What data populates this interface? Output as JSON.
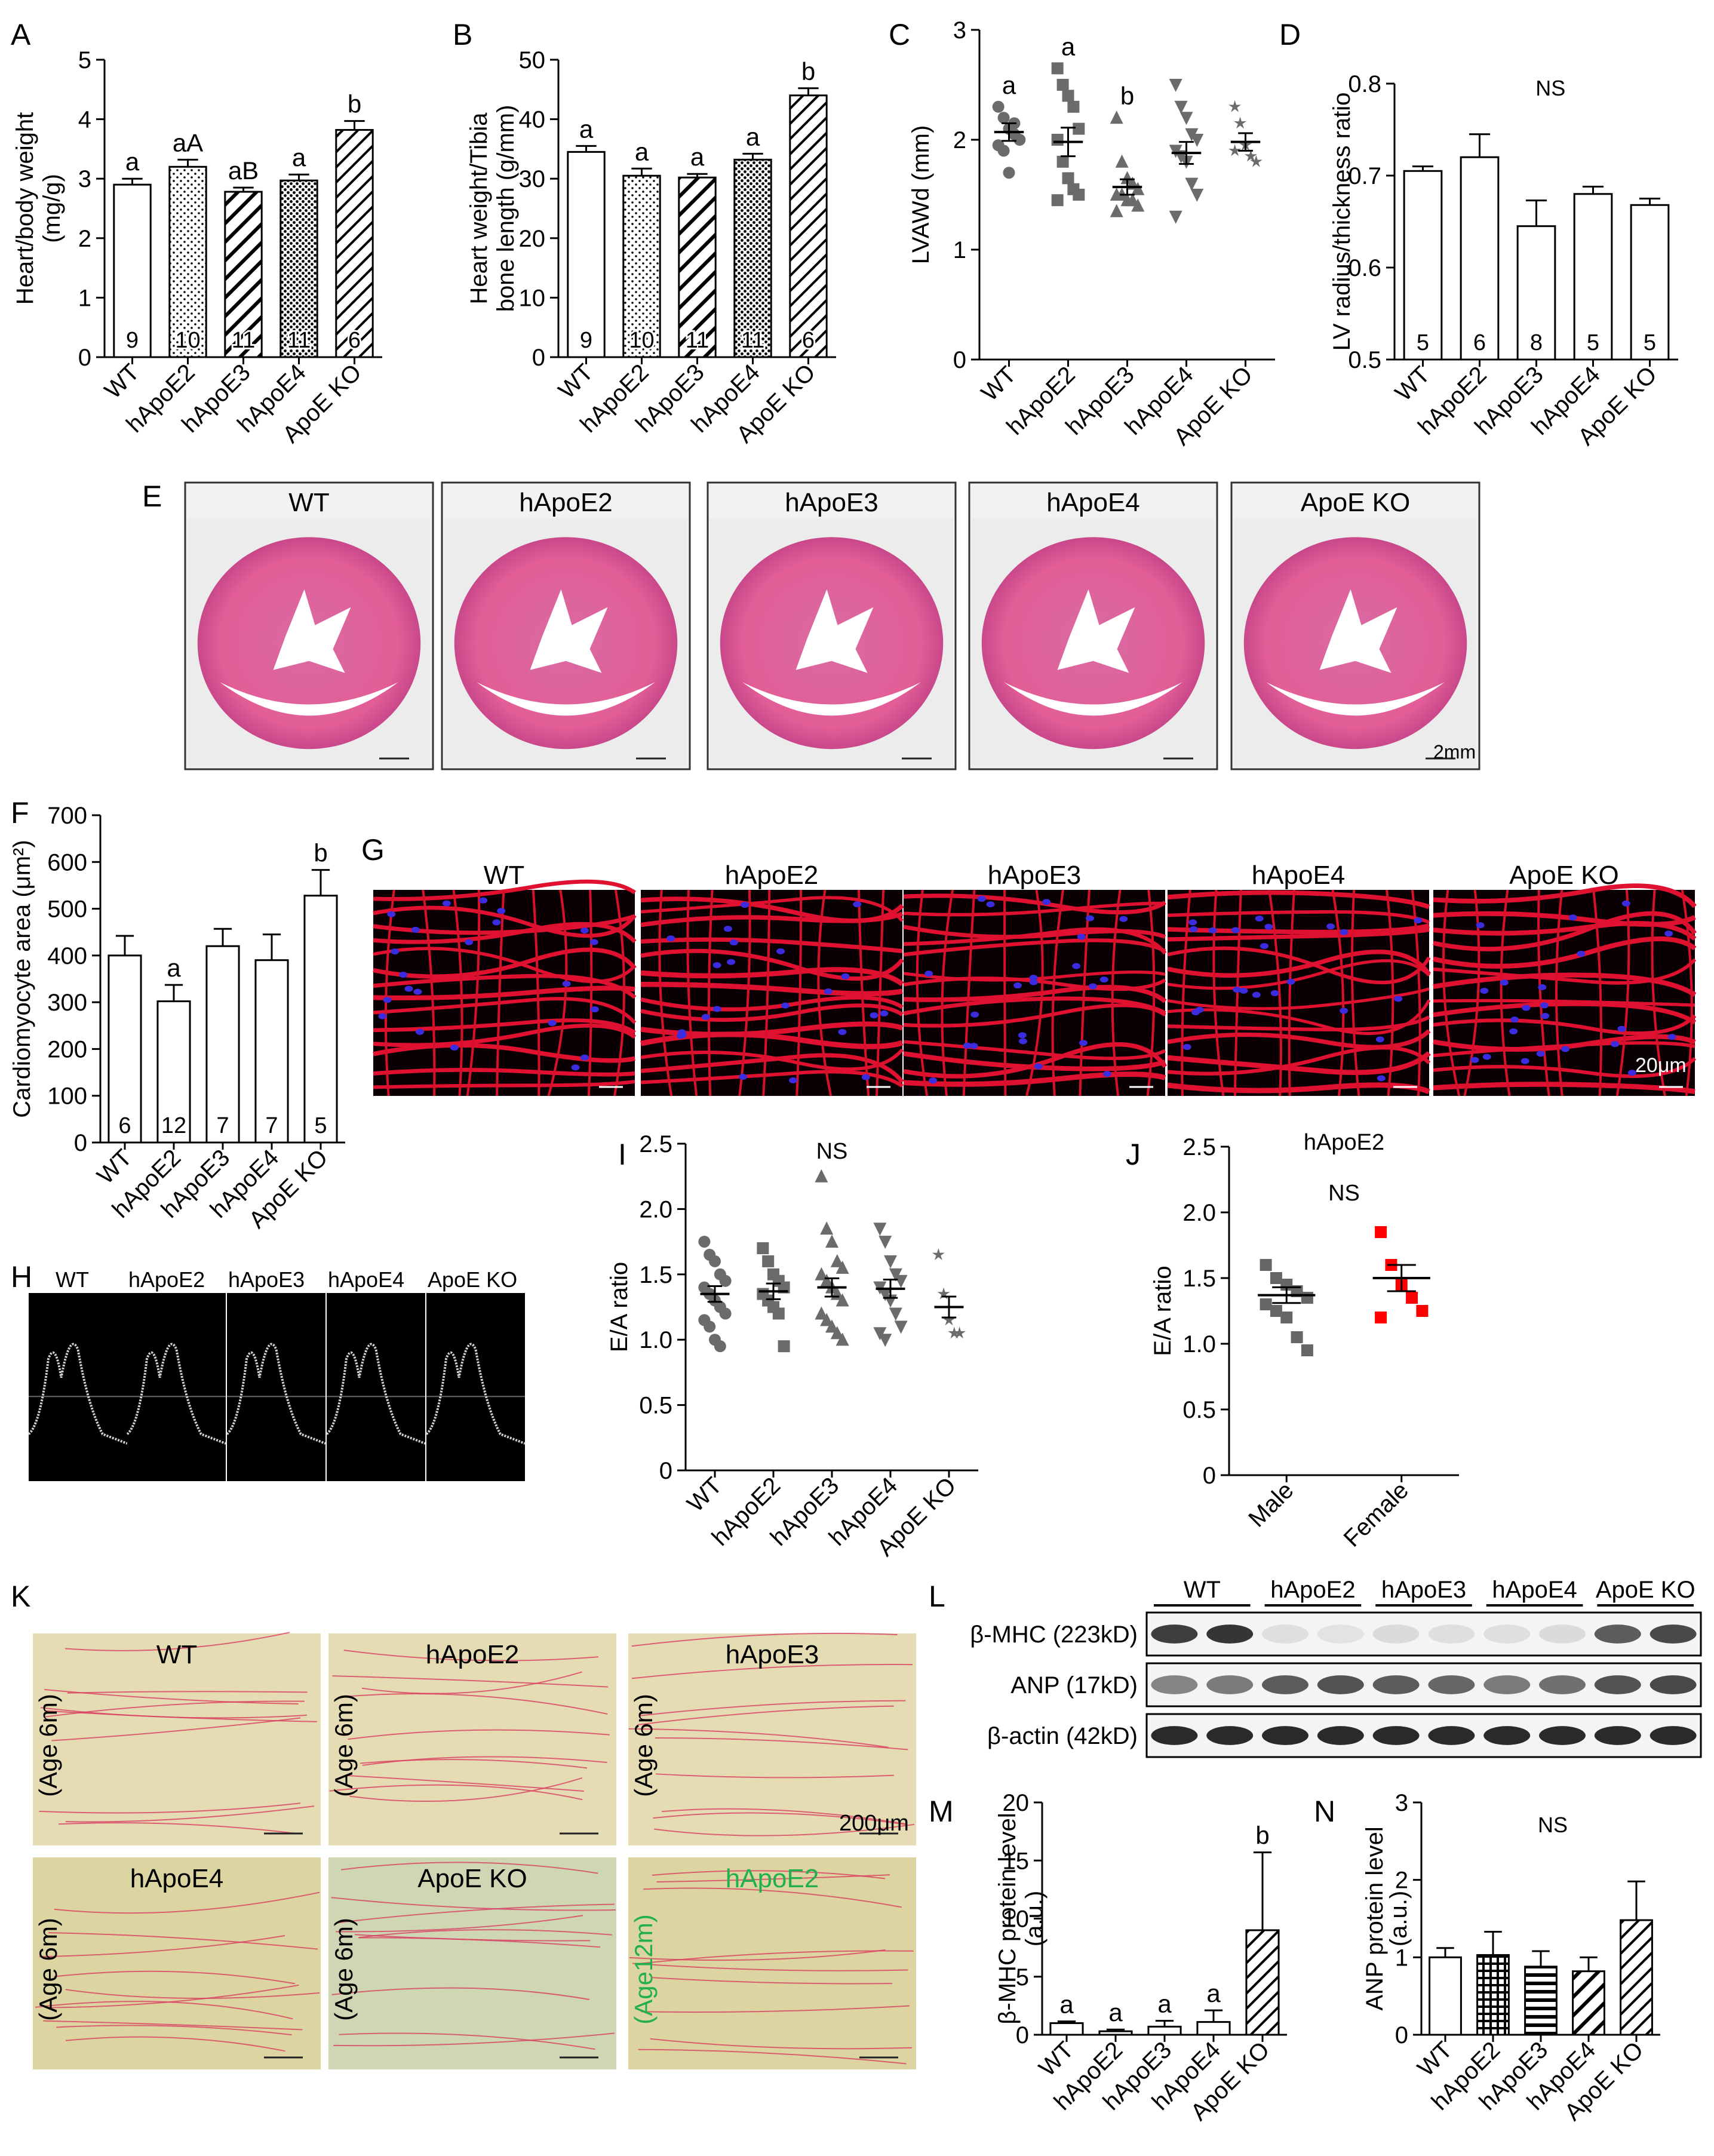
{
  "colors": {
    "red": "#ff0000",
    "green": "#21b04b",
    "he_pink": "#e05d96",
    "sirius": "#d8cfa0",
    "blot": "#2a2a2a"
  },
  "chart_data": [
    {
      "panel": "A",
      "type": "bar",
      "ylabel": [
        "Heart/body weight",
        "(mg/g)"
      ],
      "ylim": [
        0,
        5
      ],
      "ticks": [
        0,
        1,
        2,
        3,
        4,
        5
      ],
      "categories": [
        "WT",
        "hApoE2",
        "hApoE3",
        "hApoE4",
        "ApoE KO"
      ],
      "values": [
        2.9,
        3.2,
        2.78,
        2.97,
        3.82
      ],
      "errors": [
        0.1,
        0.12,
        0.07,
        0.1,
        0.15
      ],
      "letters": [
        "a",
        "aA",
        "aB",
        "a",
        "b"
      ],
      "n": [
        "9",
        "10",
        "11",
        "11",
        "6"
      ],
      "patterns": [
        "white",
        "dots",
        "hatch",
        "dense",
        "hatch2"
      ]
    },
    {
      "panel": "B",
      "type": "bar",
      "ylabel": [
        "Heart weight/Tibia",
        "bone length (g/mm)"
      ],
      "ylim": [
        0,
        50
      ],
      "ticks": [
        0,
        10,
        20,
        30,
        40,
        50
      ],
      "categories": [
        "WT",
        "hApoE2",
        "hApoE3",
        "hApoE4",
        "ApoE KO"
      ],
      "values": [
        34.5,
        30.5,
        30.2,
        33.2,
        44
      ],
      "errors": [
        1,
        1.2,
        0.6,
        1,
        1.2
      ],
      "letters": [
        "a",
        "a",
        "a",
        "a",
        "b"
      ],
      "n": [
        "9",
        "10",
        "11",
        "11",
        "6"
      ],
      "patterns": [
        "white",
        "dots",
        "hatch",
        "dense",
        "hatch2"
      ]
    },
    {
      "panel": "C",
      "type": "scatter",
      "ylabel": [
        "LVAWd (mm)"
      ],
      "ylim": [
        0,
        3
      ],
      "ticks": [
        0,
        1,
        2,
        3
      ],
      "categories": [
        "WT",
        "hApoE2",
        "hApoE3",
        "hApoE4",
        "ApoE KO"
      ],
      "means": [
        2.07,
        1.98,
        1.57,
        1.88,
        1.98
      ],
      "errors": [
        0.08,
        0.13,
        0.07,
        0.1,
        0.08
      ],
      "letters": [
        "a",
        "a",
        "b",
        "",
        ""
      ],
      "markers": [
        "circle",
        "square",
        "triangle",
        "tri-down",
        "star"
      ],
      "points": [
        [
          2.3,
          2.2,
          2.1,
          2.05,
          2.0,
          1.95,
          1.9,
          1.7,
          2.15
        ],
        [
          2.65,
          2.5,
          2.4,
          2.3,
          2.1,
          2.0,
          1.8,
          1.65,
          1.55,
          1.5,
          1.45
        ],
        [
          2.2,
          1.8,
          1.65,
          1.6,
          1.55,
          1.5,
          1.5,
          1.45,
          1.45,
          1.4,
          1.35
        ],
        [
          2.5,
          2.3,
          2.2,
          2.05,
          2.0,
          1.9,
          1.85,
          1.8,
          1.6,
          1.5,
          1.3
        ],
        [
          2.3,
          2.15,
          1.95,
          1.85,
          1.8,
          1.9
        ]
      ]
    },
    {
      "panel": "D",
      "type": "bar",
      "ylabel": [
        "LV radius/thickness ratio"
      ],
      "ylim": [
        0.5,
        0.8
      ],
      "ticks": [
        0.5,
        0.6,
        0.7,
        0.8
      ],
      "categories": [
        "WT",
        "hApoE2",
        "hApoE3",
        "hApoE4",
        "ApoE KO"
      ],
      "values": [
        0.705,
        0.72,
        0.645,
        0.68,
        0.668
      ],
      "errors": [
        0.005,
        0.025,
        0.028,
        0.008,
        0.007
      ],
      "n": [
        "5",
        "6",
        "8",
        "5",
        "5"
      ],
      "annotation": "NS",
      "patterns": [
        "white",
        "white",
        "white",
        "white",
        "white"
      ]
    },
    {
      "panel": "F",
      "type": "bar",
      "ylabel": [
        "Cardiomyocyte area (μm²)"
      ],
      "ylim": [
        0,
        700
      ],
      "ticks": [
        0,
        100,
        200,
        300,
        400,
        500,
        600,
        700
      ],
      "categories": [
        "WT",
        "hApoE2",
        "hApoE3",
        "hApoE4",
        "ApoE KO"
      ],
      "values": [
        400,
        302,
        420,
        390,
        528
      ],
      "errors": [
        42,
        35,
        37,
        55,
        55
      ],
      "letters": [
        "",
        "a",
        "",
        "",
        "b"
      ],
      "n": [
        "6",
        "12",
        "7",
        "7",
        "5"
      ],
      "patterns": [
        "white",
        "white",
        "white",
        "white",
        "white"
      ]
    },
    {
      "panel": "I",
      "type": "scatter",
      "ylabel": [
        "E/A ratio"
      ],
      "ylim": [
        0,
        2.5
      ],
      "ticks": [
        "0",
        "0.5",
        "1.0",
        "1.5",
        "2.0",
        "2.5"
      ],
      "categories": [
        "WT",
        "hApoE2",
        "hApoE3",
        "hApoE4",
        "ApoE KO"
      ],
      "means": [
        1.35,
        1.37,
        1.4,
        1.39,
        1.25
      ],
      "errors": [
        0.06,
        0.06,
        0.07,
        0.07,
        0.08
      ],
      "annotation": "NS",
      "markers": [
        "circle",
        "square",
        "triangle",
        "tri-down",
        "star"
      ],
      "points": [
        [
          1.75,
          1.65,
          1.6,
          1.5,
          1.45,
          1.4,
          1.35,
          1.3,
          1.25,
          1.2,
          1.15,
          1.1,
          1.0,
          0.95
        ],
        [
          1.7,
          1.6,
          1.5,
          1.45,
          1.4,
          1.35,
          1.3,
          1.25,
          1.2,
          0.95
        ],
        [
          2.25,
          1.85,
          1.75,
          1.6,
          1.55,
          1.5,
          1.45,
          1.4,
          1.35,
          1.3,
          1.2,
          1.15,
          1.1,
          1.05,
          1.0
        ],
        [
          1.85,
          1.75,
          1.6,
          1.5,
          1.45,
          1.4,
          1.35,
          1.3,
          1.2,
          1.1,
          1.05,
          1.0
        ],
        [
          1.65,
          1.35,
          1.15,
          1.05,
          1.05
        ]
      ]
    },
    {
      "panel": "J",
      "type": "scatter",
      "title": "hApoE2",
      "ylabel": [
        "E/A ratio"
      ],
      "ylim": [
        0,
        2.5
      ],
      "ticks": [
        "0",
        "0.5",
        "1.0",
        "1.5",
        "2.0",
        "2.5"
      ],
      "categories": [
        "Male",
        "Female"
      ],
      "means": [
        1.37,
        1.5
      ],
      "errors": [
        0.06,
        0.1
      ],
      "annotation": "NS",
      "markers": [
        "square",
        "square"
      ],
      "marker_colors": [
        "#666666",
        "#ff0000"
      ],
      "points": [
        [
          1.6,
          1.5,
          1.45,
          1.4,
          1.35,
          1.3,
          1.25,
          1.2,
          1.05,
          0.95
        ],
        [
          1.85,
          1.6,
          1.45,
          1.35,
          1.25,
          1.2
        ]
      ]
    },
    {
      "panel": "M",
      "type": "bar",
      "ylabel": [
        "β-MHC protein level",
        "(a.u.)"
      ],
      "ylim": [
        0,
        20
      ],
      "ticks": [
        0,
        5,
        10,
        15,
        20
      ],
      "categories": [
        "WT",
        "hApoE2",
        "hApoE3",
        "hApoE4",
        "ApoE KO"
      ],
      "values": [
        1,
        0.3,
        0.7,
        1.1,
        9
      ],
      "errors": [
        0.15,
        0.15,
        0.5,
        1,
        6.7
      ],
      "letters": [
        "a",
        "a",
        "a",
        "a",
        "b"
      ],
      "patterns": [
        "white",
        "white",
        "white",
        "white",
        "hatch2"
      ]
    },
    {
      "panel": "N",
      "type": "bar",
      "ylabel": [
        "ANP protein level",
        "(a.u.)"
      ],
      "ylim": [
        0,
        3
      ],
      "ticks": [
        0,
        1,
        2,
        3
      ],
      "categories": [
        "WT",
        "hApoE2",
        "hApoE3",
        "hApoE4",
        "ApoE KO"
      ],
      "values": [
        1,
        1.03,
        0.88,
        0.82,
        1.48
      ],
      "errors": [
        0.12,
        0.3,
        0.2,
        0.18,
        0.5
      ],
      "annotation": "NS",
      "patterns": [
        "white",
        "grid",
        "hstripe",
        "hatch",
        "hatch2"
      ]
    }
  ],
  "panel_labels": {
    "A": "A",
    "B": "B",
    "C": "C",
    "D": "D",
    "E": "E",
    "F": "F",
    "G": "G",
    "H": "H",
    "I": "I",
    "J": "J",
    "K": "K",
    "L": "L",
    "M": "M",
    "N": "N"
  },
  "panel_e": {
    "titles": [
      "WT",
      "hApoE2",
      "hApoE3",
      "hApoE4",
      "ApoE KO"
    ],
    "scale": "2mm"
  },
  "panel_g": {
    "titles": [
      "WT",
      "hApoE2",
      "hApoE3",
      "hApoE4",
      "ApoE KO"
    ],
    "scale": "20μm"
  },
  "panel_h": {
    "titles": [
      "WT",
      "hApoE2",
      "hApoE3",
      "hApoE4",
      "ApoE KO"
    ]
  },
  "panel_k": {
    "titles": [
      "WT",
      "hApoE2",
      "hApoE3",
      "hApoE4",
      "ApoE KO",
      "hApoE2"
    ],
    "ages": [
      "(Age 6m)",
      "(Age 6m)",
      "(Age 6m)",
      "(Age 6m)",
      "(Age 6m)",
      "(Age12m)"
    ],
    "scale": "200μm"
  },
  "panel_l": {
    "groups": [
      "WT",
      "hApoE2",
      "hApoE3",
      "hApoE4",
      "ApoE KO"
    ],
    "rows": [
      "β-MHC (223kD)",
      "ANP (17kD)",
      "β-actin (42kD)"
    ],
    "band_intensity": [
      [
        0.9,
        0.95,
        0.1,
        0.08,
        0.12,
        0.1,
        0.1,
        0.12,
        0.75,
        0.85
      ],
      [
        0.55,
        0.6,
        0.75,
        0.8,
        0.75,
        0.7,
        0.6,
        0.65,
        0.8,
        0.85
      ],
      [
        1,
        1,
        1,
        1,
        1,
        1,
        1,
        1,
        1,
        1
      ]
    ]
  }
}
